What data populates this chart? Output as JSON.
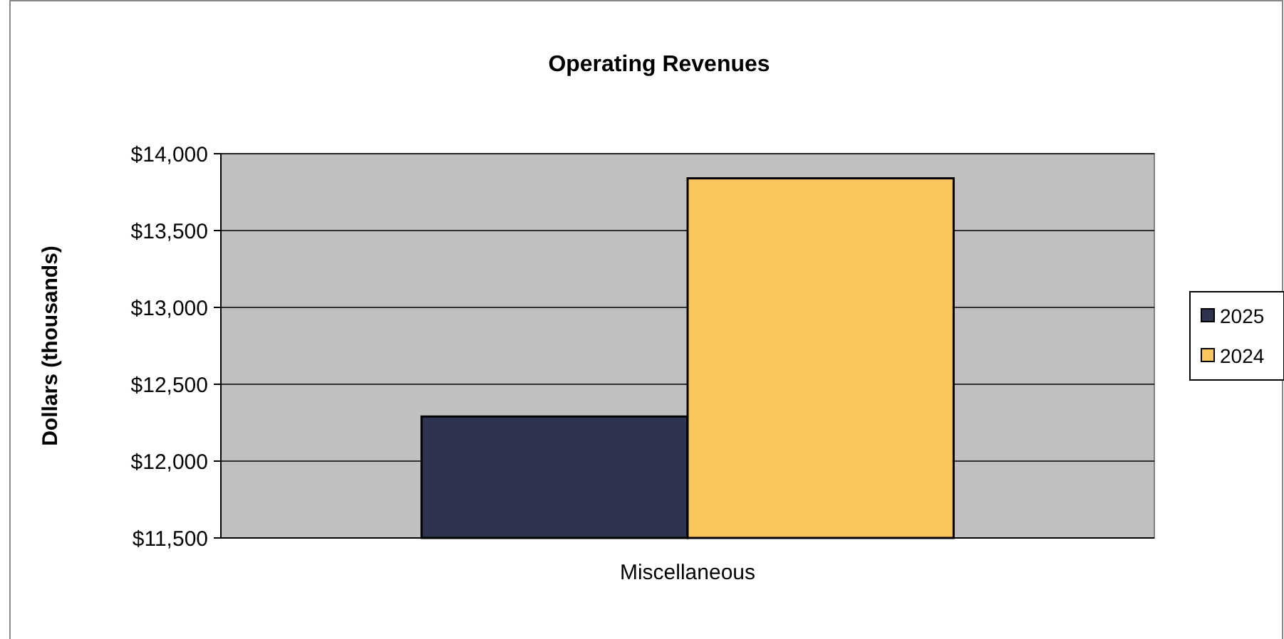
{
  "chart_data": {
    "type": "bar",
    "title": "Operating Revenues",
    "ylabel": "Dollars (thousands)",
    "categories": [
      "Miscellaneous"
    ],
    "series": [
      {
        "name": "2025",
        "color": "#2e3450",
        "values": [
          12290
        ]
      },
      {
        "name": "2024",
        "color": "#f9c55c",
        "values": [
          13840
        ]
      }
    ],
    "ylim": [
      11500,
      14000
    ],
    "yticks": [
      {
        "value": 11500,
        "label": "$11,500"
      },
      {
        "value": 12000,
        "label": "$12,000"
      },
      {
        "value": 12500,
        "label": "$12,500"
      },
      {
        "value": 13000,
        "label": "$13,000"
      },
      {
        "value": 13500,
        "label": "$13,500"
      },
      {
        "value": 14000,
        "label": "$14,000"
      }
    ],
    "grid": "y",
    "legend": "right"
  }
}
